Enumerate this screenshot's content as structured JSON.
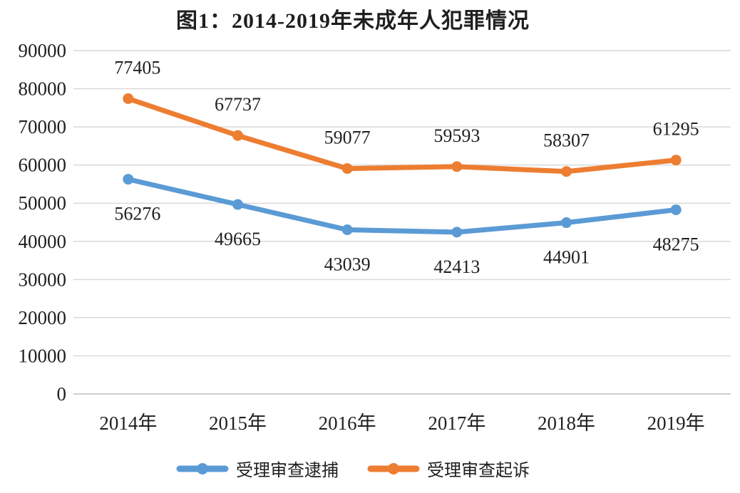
{
  "chart_data": {
    "type": "line",
    "title": "图1：2014-2019年未成年人犯罪情况",
    "categories": [
      "2014年",
      "2015年",
      "2016年",
      "2017年",
      "2018年",
      "2019年"
    ],
    "series": [
      {
        "id": "arrest",
        "name": "受理审查逮捕",
        "color": "#5B9BD5",
        "values": [
          56276,
          49665,
          43039,
          42413,
          44901,
          48275
        ],
        "label_position": "below"
      },
      {
        "id": "prosecution",
        "name": "受理审查起诉",
        "color": "#ED7D31",
        "values": [
          77405,
          67737,
          59077,
          59593,
          58307,
          61295
        ],
        "label_position": "above"
      }
    ],
    "ylim": [
      0,
      90000
    ],
    "ytick_step": 10000,
    "ytick_labels": [
      "0",
      "10000",
      "20000",
      "30000",
      "40000",
      "50000",
      "60000",
      "70000",
      "80000",
      "90000"
    ],
    "grid": "horizontal",
    "legend_position": "bottom",
    "colors": {
      "gridline": "#D9D9D9",
      "axis_line": "#BFBFBF",
      "text": "#1f1f1f"
    }
  }
}
